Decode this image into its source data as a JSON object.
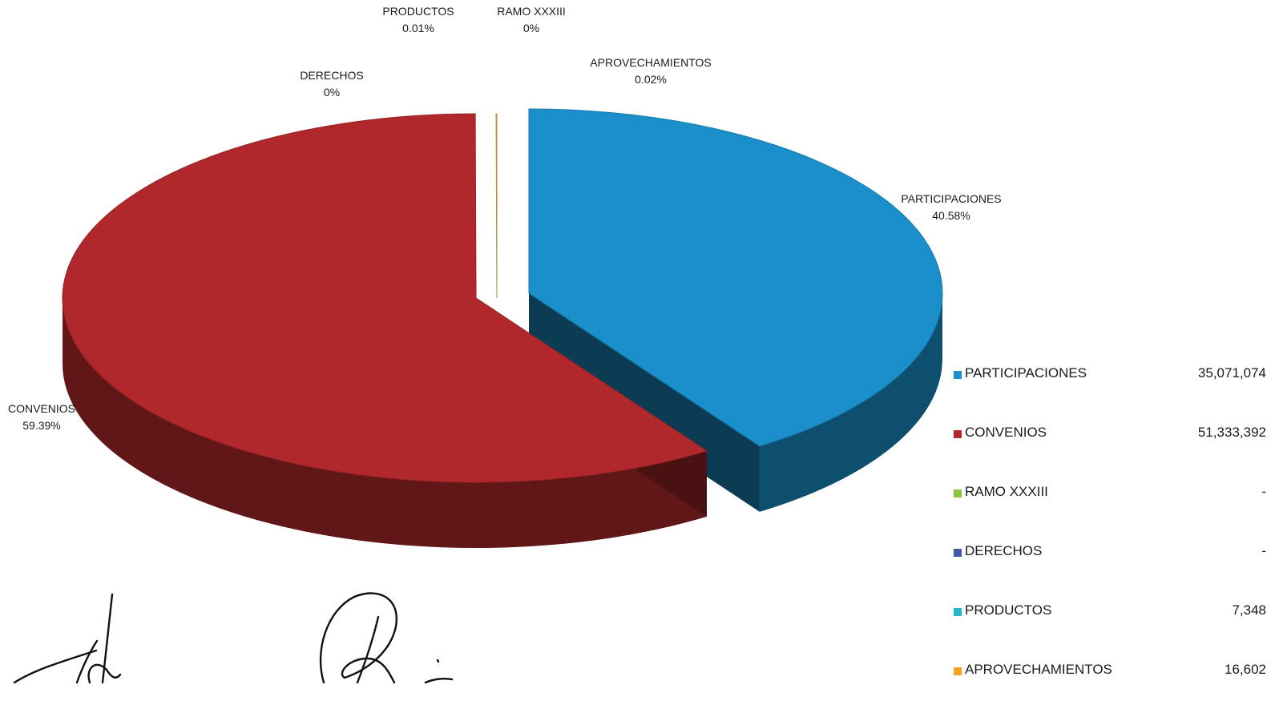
{
  "chart_data": {
    "type": "pie",
    "style": "3d-exploded",
    "title": "",
    "legend_position": "right",
    "categories": [
      "PARTICIPACIONES",
      "CONVENIOS",
      "RAMO XXXIII",
      "DERECHOS",
      "PRODUCTOS",
      "APROVECHAMIENTOS"
    ],
    "values": [
      35071074,
      51333392,
      0,
      0,
      7348,
      16602
    ],
    "value_labels": [
      "35,071,074",
      "51,333,392",
      "-",
      "-",
      "7,348",
      "16,602"
    ],
    "percent_labels": [
      "40.58%",
      "59.39%",
      "0%",
      "0%",
      "0.01%",
      "0.02%"
    ],
    "colors": [
      "#1a8fc9",
      "#b0282b",
      "#8cc63f",
      "#3a5ba8",
      "#2bb5c8",
      "#f4a21c"
    ]
  }
}
